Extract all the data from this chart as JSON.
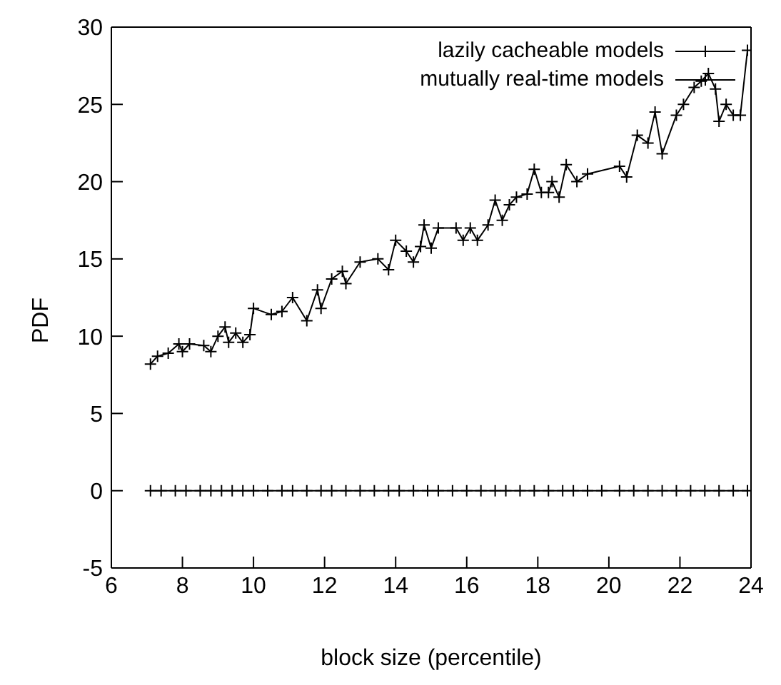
{
  "chart_data": {
    "type": "line",
    "xlabel": "block size (percentile)",
    "ylabel": "PDF",
    "xlim": [
      6,
      24
    ],
    "xticks": [
      6,
      8,
      10,
      12,
      14,
      16,
      18,
      20,
      22,
      24
    ],
    "ylim": [
      -5,
      30
    ],
    "yticks": [
      -5,
      0,
      5,
      10,
      15,
      20,
      25,
      30
    ],
    "grid": false,
    "legend": "top right",
    "marker": "cross",
    "line_style": "solid",
    "series": [
      {
        "name": "lazily cacheable models",
        "color": "#000000",
        "x": [
          7.1,
          7.3,
          7.6,
          7.9,
          8.0,
          8.2,
          8.6,
          8.8,
          9.0,
          9.2,
          9.3,
          9.5,
          9.7,
          9.9,
          10.0,
          10.5,
          10.8,
          11.1,
          11.5,
          11.8,
          11.9,
          12.2,
          12.5,
          12.6,
          13.0,
          13.5,
          13.8,
          14.0,
          14.3,
          14.5,
          14.7,
          14.8,
          15.0,
          15.2,
          15.7,
          15.9,
          16.1,
          16.3,
          16.6,
          16.8,
          17.0,
          17.2,
          17.4,
          17.7,
          17.9,
          18.1,
          18.3,
          18.4,
          18.6,
          18.8,
          19.1,
          19.4,
          20.3,
          20.5,
          20.8,
          21.1,
          21.3,
          21.5,
          21.9,
          22.1,
          22.4,
          22.6,
          22.8,
          23.0,
          23.1,
          23.3,
          23.5,
          23.7,
          23.9
        ],
        "values": [
          8.2,
          8.7,
          8.9,
          9.5,
          9.0,
          9.5,
          9.4,
          9.0,
          10.0,
          10.6,
          9.6,
          10.2,
          9.6,
          10.1,
          11.8,
          11.4,
          11.6,
          12.5,
          11.0,
          13.0,
          11.8,
          13.7,
          14.2,
          13.4,
          14.8,
          15.0,
          14.3,
          16.2,
          15.5,
          14.8,
          15.8,
          17.2,
          15.7,
          17.0,
          17.0,
          16.2,
          17.0,
          16.2,
          17.2,
          18.8,
          17.5,
          18.5,
          19.0,
          19.2,
          20.8,
          19.3,
          19.3,
          20.0,
          19.0,
          21.1,
          20.0,
          20.5,
          21.0,
          20.3,
          23.0,
          22.5,
          24.5,
          21.8,
          24.3,
          25.0,
          26.1,
          26.5,
          27.0,
          26.0,
          23.9,
          25.0,
          24.3,
          24.3,
          28.5
        ]
      },
      {
        "name": "mutually real-time models",
        "color": "#000000",
        "x": [
          7.1,
          7.4,
          7.8,
          8.1,
          8.5,
          8.8,
          9.1,
          9.4,
          9.7,
          10.0,
          10.4,
          10.8,
          11.1,
          11.5,
          11.9,
          12.2,
          12.6,
          13.0,
          13.4,
          13.8,
          14.1,
          14.5,
          14.9,
          15.2,
          15.6,
          16.0,
          16.4,
          16.8,
          17.1,
          17.5,
          17.9,
          18.3,
          18.7,
          19.0,
          19.4,
          19.8,
          20.3,
          20.7,
          21.1,
          21.5,
          21.9,
          22.3,
          22.7,
          23.1,
          23.5,
          23.9
        ],
        "values": [
          0,
          0,
          0,
          0,
          0,
          0,
          0,
          0,
          0,
          0,
          0,
          0,
          0,
          0,
          0,
          0,
          0,
          0,
          0,
          0,
          0,
          0,
          0,
          0,
          0,
          0,
          0,
          0,
          0,
          0,
          0,
          0,
          0,
          0,
          0,
          0,
          0,
          0,
          0,
          0,
          0,
          0,
          0,
          0,
          0,
          0
        ]
      }
    ]
  }
}
